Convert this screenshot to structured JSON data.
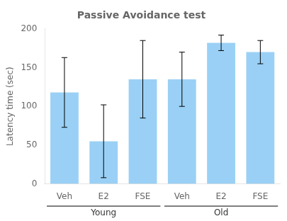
{
  "chart_data": {
    "type": "bar",
    "title": "Passive Avoidance test",
    "ylabel": "Latency time (sec)",
    "groups": [
      {
        "name": "Young",
        "categories": [
          "Veh",
          "E2",
          "FSE"
        ],
        "values": [
          118,
          55,
          135
        ],
        "errors": [
          45,
          47,
          50
        ]
      },
      {
        "name": "Old",
        "categories": [
          "Veh",
          "E2",
          "FSE"
        ],
        "values": [
          135,
          182,
          170
        ],
        "errors": [
          35,
          10,
          15
        ]
      }
    ],
    "ylim": [
      0,
      200
    ],
    "yticks": [
      0,
      50,
      100,
      150,
      200
    ],
    "grid": false
  }
}
